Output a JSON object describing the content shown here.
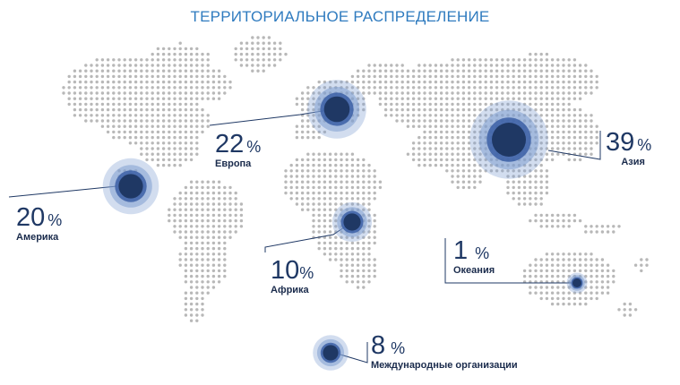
{
  "title": "ТЕРРИТОРИАЛЬНОЕ РАСПРЕДЕЛЕНИЕ",
  "colors": {
    "title": "#2f7bbf",
    "dots": "#b8b8b8",
    "bubble_core": "#1f3864",
    "bubble_ring": "#3b5fa6",
    "bubble_halo": "#7f9fd0",
    "leader": "#1f3864"
  },
  "chart_data": {
    "type": "bubble-map",
    "unit": "%",
    "regions": [
      {
        "name": "Америка",
        "value": 20
      },
      {
        "name": "Европа",
        "value": 22
      },
      {
        "name": "Африка",
        "value": 10
      },
      {
        "name": "Азия",
        "value": 39
      },
      {
        "name": "Океания",
        "value": 1
      },
      {
        "name": "Международные организации",
        "value": 8
      }
    ]
  }
}
